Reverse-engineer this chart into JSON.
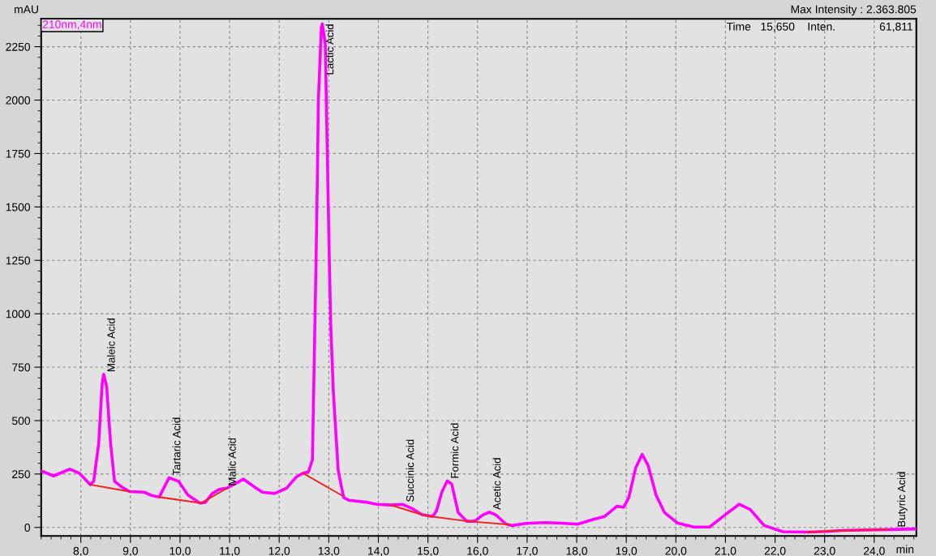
{
  "chart_data": {
    "type": "line",
    "xlabel": "min",
    "ylabel": "mAU",
    "xlim": [
      7.2,
      24.85
    ],
    "ylim": [
      -40,
      2380
    ],
    "xticks": [
      {
        "value": 8,
        "label": "8,0"
      },
      {
        "value": 9,
        "label": "9,0"
      },
      {
        "value": 10,
        "label": "10,0"
      },
      {
        "value": 11,
        "label": "11,0"
      },
      {
        "value": 12,
        "label": "12,0"
      },
      {
        "value": 13,
        "label": "13,0"
      },
      {
        "value": 14,
        "label": "14,0"
      },
      {
        "value": 15,
        "label": "15,0"
      },
      {
        "value": 16,
        "label": "16,0"
      },
      {
        "value": 17,
        "label": "17,0"
      },
      {
        "value": 18,
        "label": "18,0"
      },
      {
        "value": 19,
        "label": "19,0"
      },
      {
        "value": 20,
        "label": "20,0"
      },
      {
        "value": 21,
        "label": "21,0"
      },
      {
        "value": 22,
        "label": "22,0"
      },
      {
        "value": 23,
        "label": "23,0"
      },
      {
        "value": 24,
        "label": "24,0"
      }
    ],
    "yticks": [
      0,
      250,
      500,
      750,
      1000,
      1250,
      1500,
      1750,
      2000,
      2250
    ],
    "grid": true,
    "legend": "top left",
    "marker": "none",
    "line_style": "solid",
    "series": [
      {
        "name": "210nm,4nm",
        "color": "#ff00ff",
        "x": [
          7.2,
          7.45,
          7.78,
          7.97,
          8.19,
          8.26,
          8.36,
          8.43,
          8.46,
          8.52,
          8.6,
          8.68,
          8.82,
          8.98,
          9.28,
          9.42,
          9.58,
          9.78,
          9.97,
          10.16,
          10.4,
          10.51,
          10.65,
          10.79,
          10.95,
          11.28,
          11.5,
          11.66,
          11.91,
          12.15,
          12.34,
          12.48,
          12.59,
          12.67,
          12.74,
          12.77,
          12.79,
          12.85,
          12.87,
          12.93,
          12.97,
          13.01,
          13.04,
          13.09,
          13.19,
          13.3,
          13.41,
          13.79,
          13.97,
          14.25,
          14.49,
          14.68,
          14.87,
          15.09,
          15.17,
          15.28,
          15.39,
          15.48,
          15.61,
          15.78,
          15.94,
          16.1,
          16.24,
          16.38,
          16.57,
          16.7,
          16.98,
          17.36,
          17.69,
          18.02,
          18.34,
          18.56,
          18.81,
          18.95,
          19.05,
          19.19,
          19.32,
          19.44,
          19.6,
          19.77,
          20.03,
          20.36,
          20.68,
          21.01,
          21.28,
          21.5,
          21.78,
          22.16,
          22.65,
          23.01,
          23.36,
          23.85,
          24.29,
          24.85
        ],
        "values": [
          265,
          241,
          273,
          254,
          200,
          216,
          393,
          673,
          717,
          660,
          393,
          216,
          190,
          168,
          165,
          150,
          142,
          233,
          216,
          152,
          114,
          117,
          159,
          178,
          184,
          226,
          190,
          165,
          159,
          184,
          235,
          254,
          260,
          317,
          1201,
          1630,
          1997,
          2338,
          2357,
          2262,
          1755,
          1262,
          948,
          645,
          266,
          140,
          127,
          117,
          108,
          105,
          108,
          89,
          61,
          51,
          76,
          165,
          218,
          203,
          70,
          29,
          29,
          57,
          72,
          57,
          16,
          9,
          19,
          23,
          20,
          15,
          38,
          51,
          99,
          95,
          139,
          279,
          342,
          291,
          152,
          70,
          21,
          2,
          2,
          62,
          109,
          84,
          9,
          -20,
          -22,
          -19,
          -14,
          -12,
          -10,
          -7
        ]
      },
      {
        "color": "#ee2222",
        "x": [
          8.19,
          8.98,
          9.3,
          9.58,
          10.43,
          10.95,
          11.7,
          12.48,
          13.27,
          13.8,
          14.25,
          14.9,
          15.1,
          15.8,
          16.65,
          19.6,
          22.65,
          23.36,
          24.29
        ],
        "values": [
          200,
          168,
          null,
          142,
          114,
          184,
          null,
          254,
          149,
          null,
          105,
          58,
          50,
          29,
          13,
          null,
          -22,
          -14,
          -10
        ]
      }
    ],
    "annotations": [
      {
        "text": "Maleic Acid",
        "x": 8.46,
        "y": 717
      },
      {
        "text": "Tartaric Acid",
        "x": 9.78,
        "y": 233
      },
      {
        "text": "Malic Acid",
        "x": 10.9,
        "y": 184
      },
      {
        "text": "Lactic Acid",
        "x": 12.87,
        "y": 2357
      },
      {
        "text": "Succinic Acid",
        "x": 14.49,
        "y": 108
      },
      {
        "text": "Formic Acid",
        "x": 15.39,
        "y": 218
      },
      {
        "text": "Acetic Acid",
        "x": 16.24,
        "y": 72
      },
      {
        "text": "Butyric Acid",
        "x": 24.4,
        "y": -10
      },
      "Max Intensity : 2.363.805",
      "Time   15,650    Inten.              61,811"
    ]
  }
}
